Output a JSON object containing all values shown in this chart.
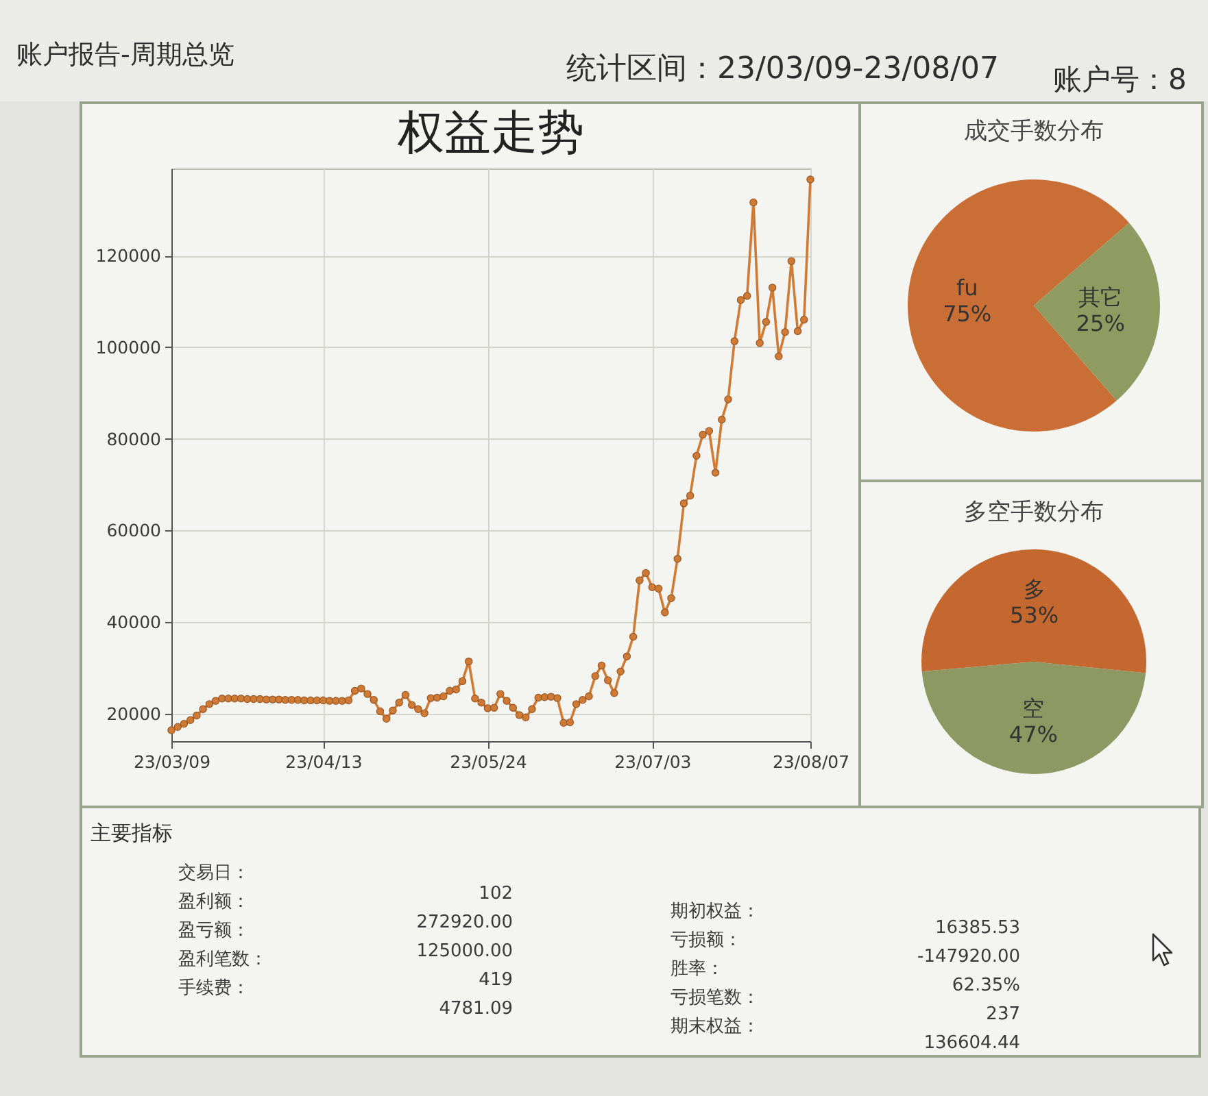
{
  "chart_data": [
    {
      "type": "other",
      "title": "账户报告-周期总览",
      "annotations": [
        "统计区间：23/03/09-23/08/07",
        "账户号：8"
      ]
    },
    {
      "type": "line",
      "title": "权益走势",
      "categories": [
        "23/03/09",
        null,
        null,
        null,
        null,
        null,
        null,
        null,
        null,
        null,
        null,
        null,
        null,
        null,
        null,
        null,
        null,
        null,
        null,
        null,
        null,
        null,
        null,
        null,
        "23/04/13",
        null,
        null,
        null,
        null,
        null,
        null,
        null,
        null,
        null,
        null,
        null,
        null,
        null,
        null,
        null,
        null,
        null,
        null,
        null,
        null,
        null,
        null,
        null,
        null,
        null,
        "23/05/24",
        null,
        null,
        null,
        null,
        null,
        null,
        null,
        null,
        null,
        null,
        null,
        null,
        null,
        null,
        null,
        null,
        null,
        null,
        null,
        null,
        null,
        null,
        null,
        null,
        null,
        "23/07/03",
        null,
        null,
        null,
        null,
        null,
        null,
        null,
        null,
        null,
        null,
        null,
        null,
        null,
        null,
        null,
        null,
        null,
        null,
        null,
        null,
        null,
        null,
        null,
        null,
        "23/08/07"
      ],
      "series": [
        {
          "color": "#cf7b35",
          "values": [
            16400,
            17100,
            17800,
            18600,
            19600,
            21000,
            22100,
            22800,
            23300,
            23300,
            23300,
            23300,
            23200,
            23200,
            23200,
            23100,
            23100,
            23100,
            23000,
            23000,
            23000,
            22900,
            22900,
            22900,
            22900,
            22800,
            22800,
            22800,
            22900,
            25000,
            25500,
            24300,
            23000,
            20500,
            18900,
            20700,
            22400,
            24100,
            21900,
            21000,
            20100,
            23400,
            23500,
            23800,
            25000,
            25300,
            27100,
            31400,
            23300,
            22400,
            21200,
            21300,
            24300,
            22800,
            21300,
            19700,
            19200,
            21000,
            23500,
            23600,
            23700,
            23400,
            18000,
            18100,
            22100,
            23000,
            23800,
            28200,
            30500,
            27300,
            24500,
            29200,
            32500,
            36800,
            49100,
            50700,
            47600,
            47300,
            42100,
            45200,
            53800,
            65900,
            67600,
            76300,
            80900,
            81700,
            72600,
            84200,
            88600,
            101300,
            110300,
            111200,
            131600,
            100900,
            105500,
            113000,
            98000,
            103300,
            118800,
            103500,
            106000,
            136600
          ]
        }
      ],
      "ylim": [
        14000,
        139000
      ],
      "yticks": [
        20000,
        40000,
        60000,
        80000,
        100000,
        120000
      ],
      "grid": true,
      "marker": "circle"
    },
    {
      "type": "pie",
      "title": "成交手数分布",
      "categories": [
        "fu",
        "其它"
      ],
      "values": [
        75,
        25
      ],
      "colors": [
        "#c96f36",
        "#8f9b61"
      ],
      "value_labels": [
        "75%",
        "25%"
      ]
    },
    {
      "type": "pie",
      "title": "多空手数分布",
      "categories": [
        "多",
        "空"
      ],
      "values": [
        53,
        47
      ],
      "colors": [
        "#c5682f",
        "#8d9862"
      ],
      "value_labels": [
        "53%",
        "47%"
      ]
    },
    {
      "type": "other",
      "title": "主要指标",
      "annotations": [
        "交易日：",
        "102",
        "盈利额：",
        "272920.00",
        "盈亏额：",
        "125000.00",
        "盈利笔数：",
        "419",
        "手续费：",
        "4781.09",
        "期初权益：",
        "16385.53",
        "亏损额：",
        "-147920.00",
        "胜率：",
        "62.35%",
        "亏损笔数：",
        "237",
        "期末权益：",
        "136604.44"
      ]
    }
  ]
}
